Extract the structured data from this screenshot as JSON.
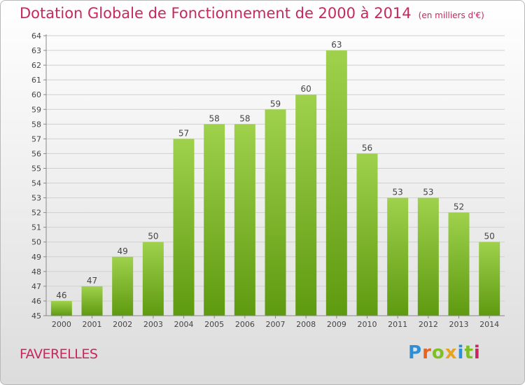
{
  "title": {
    "main": "Dotation Globale de Fonctionnement de 2000 à 2014",
    "unit": "(en milliers d'€)"
  },
  "commune": "FAVERELLES",
  "logo": {
    "letters": [
      "P",
      "r",
      "o",
      "x",
      "i",
      "t",
      "i"
    ],
    "colors": [
      "#2e8fd6",
      "#e8641e",
      "#7fbf26",
      "#e8a31e",
      "#2e8fd6",
      "#7fbf26",
      "#c8275e"
    ]
  },
  "colors": {
    "title": "#c8275e",
    "bar_light": "#9fd14c",
    "bar_dark": "#5e9a10",
    "axis": "#888888",
    "grid": "#d0d0d0"
  },
  "chart_data": {
    "type": "bar",
    "title": "Dotation Globale de Fonctionnement de 2000 à 2014",
    "subtitle": "(en milliers d'€)",
    "categories": [
      "2000",
      "2001",
      "2002",
      "2003",
      "2004",
      "2005",
      "2006",
      "2007",
      "2008",
      "2009",
      "2010",
      "2011",
      "2012",
      "2013",
      "2014"
    ],
    "values": [
      46,
      47,
      49,
      50,
      57,
      58,
      58,
      59,
      60,
      63,
      56,
      53,
      53,
      52,
      50
    ],
    "ylim": [
      45,
      64
    ],
    "yticks": [
      45,
      46,
      47,
      48,
      49,
      50,
      51,
      52,
      53,
      54,
      55,
      56,
      57,
      58,
      59,
      60,
      61,
      62,
      63,
      64
    ],
    "grid": true,
    "data_labels": true
  }
}
